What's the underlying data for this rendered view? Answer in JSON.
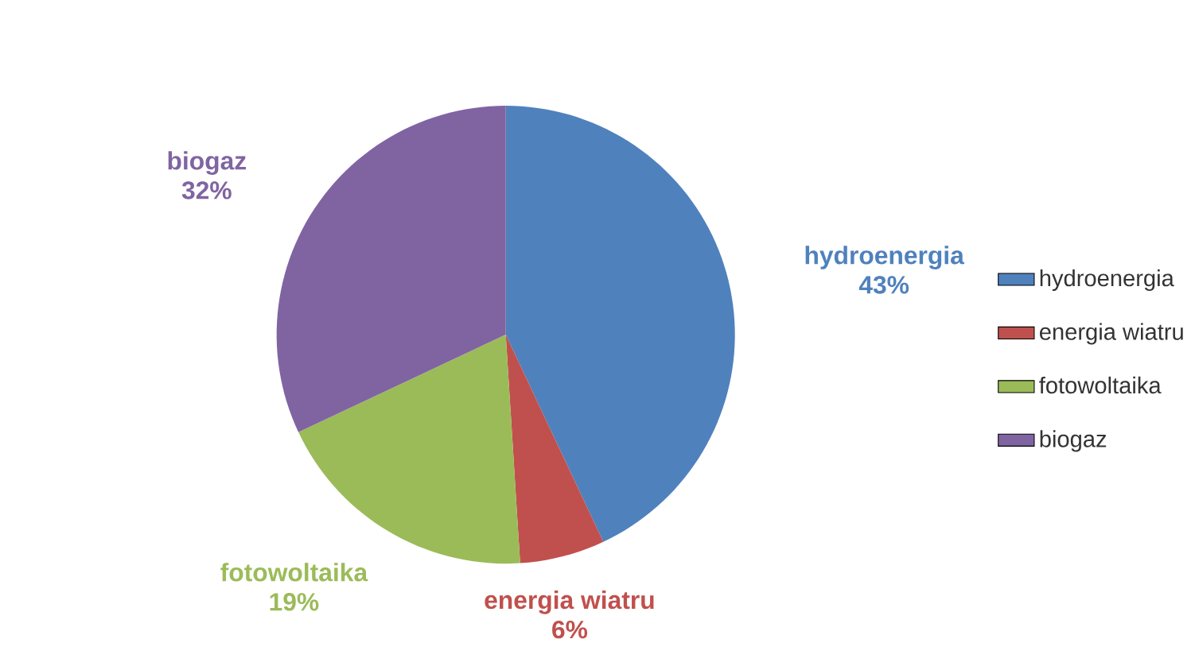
{
  "chart_data": {
    "type": "pie",
    "categories": [
      "hydroenergia",
      "energia wiatru",
      "fotowoltaika",
      "biogaz"
    ],
    "values": [
      43,
      6,
      19,
      32
    ],
    "value_labels": [
      "43%",
      "6%",
      "19%",
      "32%"
    ],
    "colors": [
      "#4f81bd",
      "#c0504d",
      "#9bbb59",
      "#8064a2"
    ],
    "legend": "right"
  }
}
